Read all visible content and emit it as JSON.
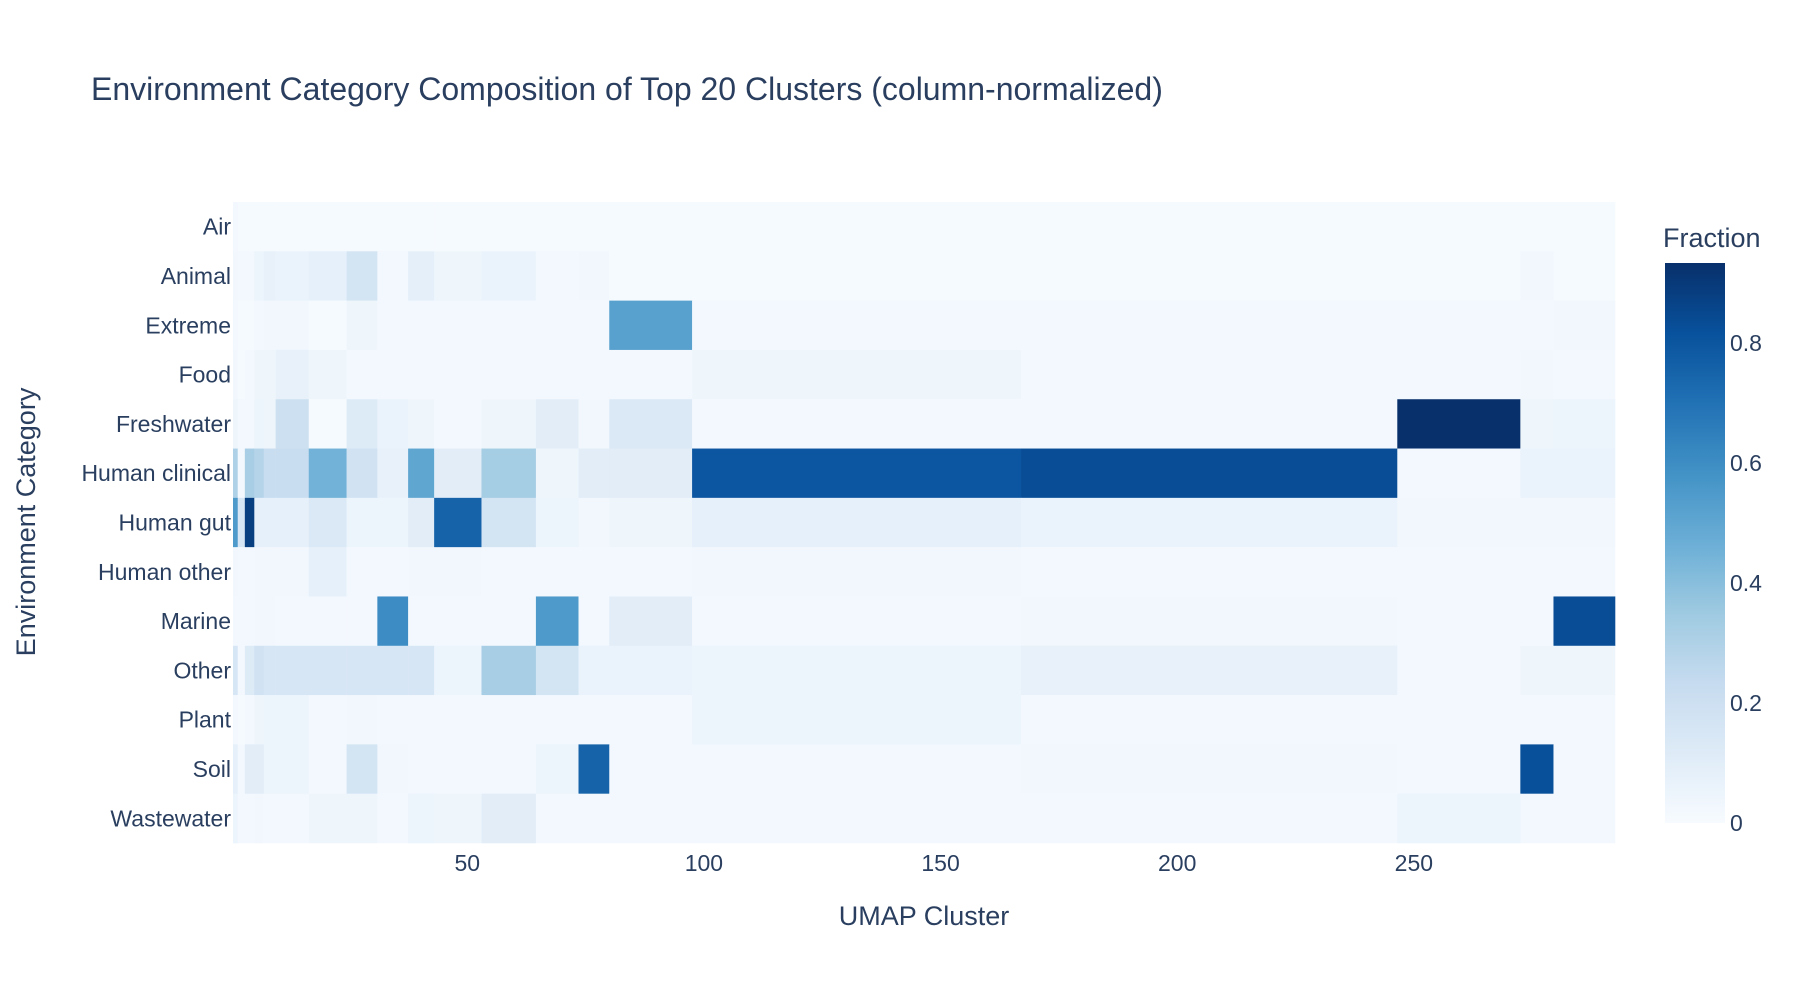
{
  "chart_data": {
    "type": "heatmap",
    "title": "Environment Category Composition of Top 20 Clusters (column-normalized)",
    "xlabel": "UMAP Cluster",
    "ylabel": "Environment Category",
    "x": [
      1,
      2,
      4,
      6,
      8,
      11,
      22,
      27,
      35,
      40,
      46,
      60,
      69,
      78,
      82,
      113,
      221,
      272,
      273,
      286
    ],
    "xlim": [
      0.5,
      292.5
    ],
    "xticks": [
      50,
      100,
      150,
      200,
      250
    ],
    "y": [
      "Air",
      "Animal",
      "Extreme",
      "Food",
      "Freshwater",
      "Human clinical",
      "Human gut",
      "Human other",
      "Marine",
      "Other",
      "Plant",
      "Soil",
      "Wastewater"
    ],
    "z": [
      [
        0.02,
        0.01,
        0.01,
        0.01,
        0.01,
        0.01,
        0.01,
        0.01,
        0.01,
        0.01,
        0.01,
        0.01,
        0.01,
        0.01,
        0.01,
        0.01,
        0.01,
        0.01,
        0.01,
        0.01
      ],
      [
        0.03,
        0.02,
        0.02,
        0.05,
        0.07,
        0.06,
        0.08,
        0.17,
        0.02,
        0.09,
        0.04,
        0.06,
        0.02,
        0.03,
        0.01,
        0.01,
        0.01,
        0.01,
        0.03,
        0.01
      ],
      [
        0.02,
        0.01,
        0.01,
        0.02,
        0.03,
        0.03,
        0.01,
        0.04,
        0.02,
        0.02,
        0.02,
        0.02,
        0.02,
        0.02,
        0.52,
        0.02,
        0.02,
        0.02,
        0.02,
        0.03
      ],
      [
        0.03,
        0.01,
        0.02,
        0.04,
        0.04,
        0.07,
        0.04,
        0.02,
        0.02,
        0.02,
        0.02,
        0.02,
        0.02,
        0.02,
        0.02,
        0.04,
        0.02,
        0.02,
        0.03,
        0.02
      ],
      [
        0.04,
        0.02,
        0.02,
        0.05,
        0.04,
        0.2,
        0.01,
        0.12,
        0.06,
        0.04,
        0.02,
        0.04,
        0.1,
        0.03,
        0.13,
        0.02,
        0.02,
        0.93,
        0.04,
        0.05
      ],
      [
        0.3,
        0.02,
        0.32,
        0.28,
        0.22,
        0.22,
        0.45,
        0.18,
        0.07,
        0.5,
        0.1,
        0.33,
        0.04,
        0.1,
        0.1,
        0.8,
        0.83,
        0.02,
        0.06,
        0.06
      ],
      [
        0.55,
        0.15,
        0.88,
        0.08,
        0.08,
        0.08,
        0.13,
        0.05,
        0.05,
        0.1,
        0.75,
        0.17,
        0.05,
        0.03,
        0.04,
        0.08,
        0.06,
        0.03,
        0.03,
        0.03
      ],
      [
        0.03,
        0.02,
        0.02,
        0.03,
        0.03,
        0.03,
        0.08,
        0.02,
        0.02,
        0.03,
        0.03,
        0.02,
        0.02,
        0.02,
        0.02,
        0.03,
        0.02,
        0.02,
        0.02,
        0.02
      ],
      [
        0.02,
        0.02,
        0.02,
        0.03,
        0.03,
        0.02,
        0.02,
        0.02,
        0.6,
        0.02,
        0.02,
        0.02,
        0.55,
        0.02,
        0.1,
        0.02,
        0.03,
        0.02,
        0.02,
        0.83
      ],
      [
        0.15,
        0.02,
        0.12,
        0.18,
        0.15,
        0.15,
        0.15,
        0.15,
        0.15,
        0.15,
        0.05,
        0.32,
        0.17,
        0.06,
        0.06,
        0.05,
        0.07,
        0.02,
        0.04,
        0.04
      ],
      [
        0.02,
        0.01,
        0.02,
        0.04,
        0.05,
        0.05,
        0.02,
        0.03,
        0.02,
        0.02,
        0.02,
        0.02,
        0.02,
        0.02,
        0.02,
        0.05,
        0.02,
        0.02,
        0.02,
        0.02
      ],
      [
        0.08,
        0.02,
        0.1,
        0.1,
        0.05,
        0.05,
        0.02,
        0.17,
        0.03,
        0.02,
        0.02,
        0.02,
        0.05,
        0.75,
        0.02,
        0.02,
        0.03,
        0.02,
        0.82,
        0.02
      ],
      [
        0.05,
        0.02,
        0.02,
        0.03,
        0.02,
        0.02,
        0.04,
        0.04,
        0.02,
        0.05,
        0.04,
        0.1,
        0.02,
        0.02,
        0.02,
        0.02,
        0.02,
        0.05,
        0.02,
        0.02
      ]
    ],
    "zmin": 0,
    "zmax": 0.933,
    "colorscale": [
      [
        0,
        "#f7fbff"
      ],
      [
        0.125,
        "#deebf7"
      ],
      [
        0.25,
        "#c6dbef"
      ],
      [
        0.375,
        "#9ecae1"
      ],
      [
        0.5,
        "#6baed6"
      ],
      [
        0.625,
        "#4292c6"
      ],
      [
        0.75,
        "#2171b5"
      ],
      [
        0.875,
        "#08519c"
      ],
      [
        1,
        "#08306b"
      ]
    ],
    "colorbar": {
      "title": "Fraction",
      "ticks": [
        0,
        0.2,
        0.4,
        0.6,
        0.8
      ],
      "ticklabels": [
        "0",
        "0.2",
        "0.4",
        "0.6",
        "0.8"
      ]
    },
    "grid": false,
    "legend": "colorbar-right"
  }
}
